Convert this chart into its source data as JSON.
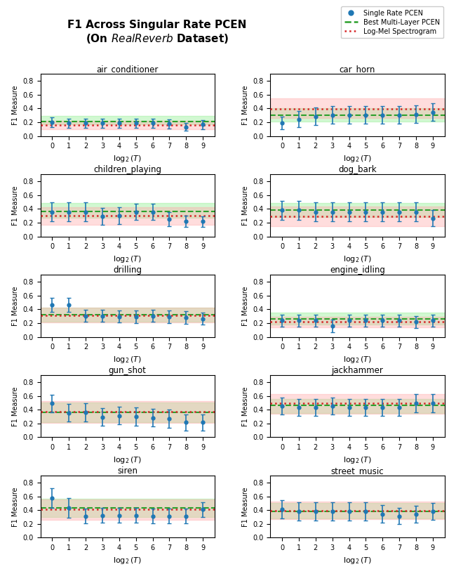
{
  "title_line1": "F1 Across Singular Rate PCEN",
  "title_line2_pre": "(On ",
  "title_italic": "RealReverb",
  "title_line2_post": " Dataset)",
  "categories": [
    "air_conditioner",
    "car_horn",
    "children_playing",
    "dog_bark",
    "drilling",
    "engine_idling",
    "gun_shot",
    "jackhammer",
    "siren",
    "street_music"
  ],
  "x_values": [
    0,
    1,
    2,
    3,
    4,
    5,
    6,
    7,
    8,
    9
  ],
  "ylim": [
    0.0,
    0.9
  ],
  "yticks": [
    0.0,
    0.2,
    0.4,
    0.6,
    0.8
  ],
  "subplot_data": {
    "air_conditioner": {
      "means": [
        0.2,
        0.185,
        0.185,
        0.185,
        0.185,
        0.185,
        0.185,
        0.175,
        0.13,
        0.165
      ],
      "errors": [
        0.075,
        0.07,
        0.065,
        0.065,
        0.065,
        0.065,
        0.065,
        0.065,
        0.055,
        0.065
      ],
      "green_line": 0.21,
      "green_band": [
        0.165,
        0.295
      ],
      "red_line": 0.162,
      "red_band": [
        0.095,
        0.215
      ]
    },
    "car_horn": {
      "means": [
        0.19,
        0.245,
        0.285,
        0.305,
        0.305,
        0.305,
        0.305,
        0.305,
        0.315,
        0.345
      ],
      "errors": [
        0.09,
        0.12,
        0.13,
        0.13,
        0.13,
        0.13,
        0.13,
        0.13,
        0.13,
        0.13
      ],
      "green_line": 0.305,
      "green_band": [
        0.21,
        0.4
      ],
      "red_line": 0.395,
      "red_band": [
        0.265,
        0.545
      ]
    },
    "children_playing": {
      "means": [
        0.355,
        0.355,
        0.355,
        0.29,
        0.3,
        0.355,
        0.355,
        0.25,
        0.22,
        0.215
      ],
      "errors": [
        0.135,
        0.135,
        0.135,
        0.12,
        0.12,
        0.12,
        0.12,
        0.1,
        0.08,
        0.08
      ],
      "green_line": 0.36,
      "green_band": [
        0.27,
        0.48
      ],
      "red_line": 0.305,
      "red_band": [
        0.17,
        0.42
      ]
    },
    "dog_bark": {
      "means": [
        0.38,
        0.38,
        0.355,
        0.355,
        0.355,
        0.355,
        0.355,
        0.355,
        0.355,
        0.265
      ],
      "errors": [
        0.14,
        0.14,
        0.135,
        0.135,
        0.135,
        0.135,
        0.135,
        0.135,
        0.135,
        0.12
      ],
      "green_line": 0.385,
      "green_band": [
        0.285,
        0.485
      ],
      "red_line": 0.295,
      "red_band": [
        0.145,
        0.435
      ]
    },
    "drilling": {
      "means": [
        0.465,
        0.465,
        0.305,
        0.305,
        0.295,
        0.29,
        0.305,
        0.29,
        0.28,
        0.265
      ],
      "errors": [
        0.1,
        0.1,
        0.09,
        0.09,
        0.09,
        0.09,
        0.09,
        0.09,
        0.09,
        0.09
      ],
      "green_line": 0.325,
      "green_band": [
        0.22,
        0.42
      ],
      "red_line": 0.315,
      "red_band": [
        0.21,
        0.42
      ]
    },
    "engine_idling": {
      "means": [
        0.235,
        0.235,
        0.235,
        0.16,
        0.235,
        0.235,
        0.235,
        0.235,
        0.215,
        0.235
      ],
      "errors": [
        0.09,
        0.09,
        0.09,
        0.09,
        0.09,
        0.09,
        0.09,
        0.09,
        0.09,
        0.09
      ],
      "green_line": 0.265,
      "green_band": [
        0.175,
        0.355
      ],
      "red_line": 0.215,
      "red_band": [
        0.135,
        0.295
      ]
    },
    "gun_shot": {
      "means": [
        0.49,
        0.355,
        0.36,
        0.295,
        0.315,
        0.3,
        0.285,
        0.27,
        0.215,
        0.215
      ],
      "errors": [
        0.13,
        0.13,
        0.13,
        0.13,
        0.13,
        0.13,
        0.13,
        0.13,
        0.12,
        0.12
      ],
      "green_line": 0.36,
      "green_band": [
        0.22,
        0.5
      ],
      "red_line": 0.37,
      "red_band": [
        0.21,
        0.53
      ]
    },
    "jackhammer": {
      "means": [
        0.455,
        0.435,
        0.435,
        0.455,
        0.435,
        0.435,
        0.435,
        0.435,
        0.495,
        0.495
      ],
      "errors": [
        0.12,
        0.12,
        0.12,
        0.12,
        0.12,
        0.12,
        0.12,
        0.12,
        0.13,
        0.13
      ],
      "green_line": 0.465,
      "green_band": [
        0.355,
        0.56
      ],
      "red_line": 0.495,
      "red_band": [
        0.345,
        0.625
      ]
    },
    "siren": {
      "means": [
        0.575,
        0.435,
        0.315,
        0.325,
        0.325,
        0.325,
        0.315,
        0.315,
        0.315,
        0.41
      ],
      "errors": [
        0.145,
        0.145,
        0.11,
        0.11,
        0.11,
        0.11,
        0.11,
        0.11,
        0.105,
        0.105
      ],
      "green_line": 0.435,
      "green_band": [
        0.305,
        0.57
      ],
      "red_line": 0.41,
      "red_band": [
        0.255,
        0.555
      ]
    },
    "street_music": {
      "means": [
        0.41,
        0.38,
        0.38,
        0.38,
        0.38,
        0.38,
        0.345,
        0.315,
        0.34,
        0.38
      ],
      "errors": [
        0.13,
        0.13,
        0.13,
        0.13,
        0.13,
        0.13,
        0.13,
        0.12,
        0.12,
        0.12
      ],
      "green_line": 0.385,
      "green_band": [
        0.28,
        0.5
      ],
      "red_line": 0.395,
      "red_band": [
        0.265,
        0.52
      ]
    }
  },
  "blue_color": "#1f77b4",
  "green_color": "#2ca02c",
  "red_color": "#d62728",
  "green_band_color": "#90ee90",
  "red_band_color": "#ffaaaa",
  "figsize": [
    6.4,
    8.1
  ],
  "dpi": 100
}
